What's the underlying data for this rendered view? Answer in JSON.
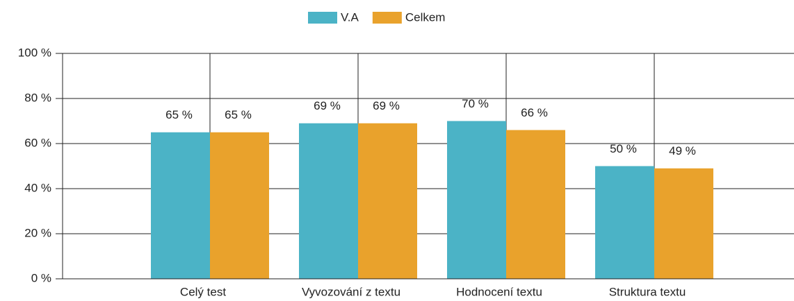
{
  "chart_data": {
    "type": "bar",
    "categories": [
      "Celý test",
      "Vyvozování z textu",
      "Hodnocení textu",
      "Struktura textu"
    ],
    "series": [
      {
        "name": "V.A",
        "color": "#4bb3c6",
        "values": [
          65,
          69,
          70,
          50
        ],
        "value_labels": [
          "65 %",
          "69 %",
          "70 %",
          "50 %"
        ]
      },
      {
        "name": "Celkem",
        "color": "#e9a22c",
        "values": [
          65,
          69,
          66,
          49
        ],
        "value_labels": [
          "65 %",
          "69 %",
          "66 %",
          "49 %"
        ]
      }
    ],
    "ylim": [
      0,
      100
    ],
    "yticks": [
      {
        "value": 0,
        "label": "0 %"
      },
      {
        "value": 20,
        "label": "20 %"
      },
      {
        "value": 40,
        "label": "40 %"
      },
      {
        "value": 60,
        "label": "60 %"
      },
      {
        "value": 80,
        "label": "80 %"
      },
      {
        "value": 100,
        "label": "100 %"
      }
    ],
    "grid": true,
    "legend": "top"
  }
}
